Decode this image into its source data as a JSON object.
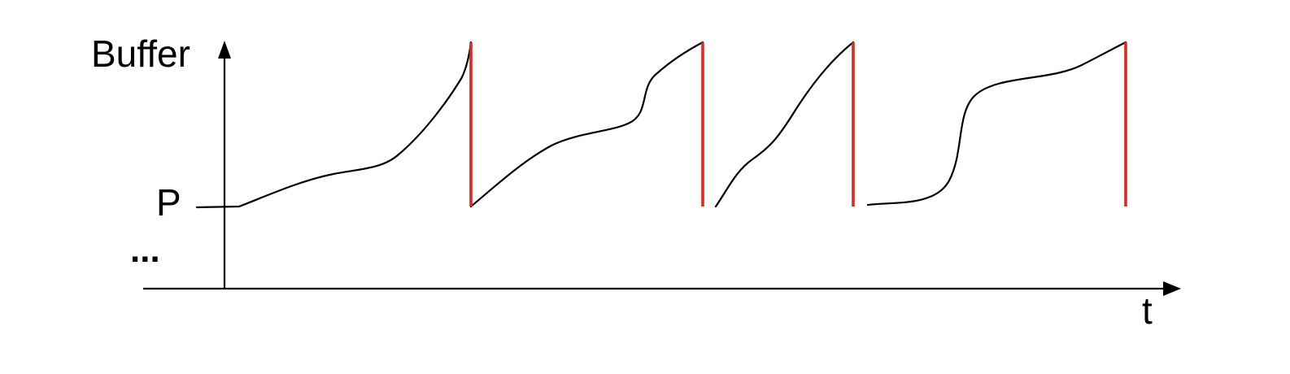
{
  "labels": {
    "y_axis": "Buffer",
    "x_axis": "t",
    "level_marker": "P",
    "ellipsis": "..."
  },
  "colors": {
    "axis": "#000000",
    "curve": "#000000",
    "drop": "#e0281e"
  },
  "chart_data": {
    "type": "line",
    "xlabel": "t",
    "ylabel": "Buffer",
    "y_reference_label": "P",
    "segments": [
      {
        "name": "",
        "curve": "buffer-fill-1",
        "ends_with_drop": true
      },
      {
        "name": "",
        "curve": "buffer-fill-2",
        "ends_with_drop": true
      },
      {
        "name": "",
        "curve": "buffer-fill-3",
        "ends_with_drop": true
      },
      {
        "name": "",
        "curve": "buffer-fill-4",
        "ends_with_drop": true
      }
    ]
  }
}
